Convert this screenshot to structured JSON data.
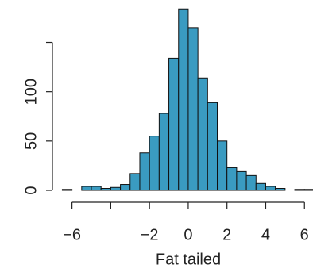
{
  "chart_data": {
    "type": "histogram",
    "x_label": "Fat tailed",
    "bins": [
      -6.5,
      -6,
      -5.5,
      -5,
      -4.5,
      -4,
      -3.5,
      -3,
      -2.5,
      -2,
      -1.5,
      -1,
      -0.5,
      0,
      0.5,
      1,
      1.5,
      2,
      2.5,
      3,
      3.5,
      4,
      4.5,
      5,
      5.5,
      6,
      6.5
    ],
    "values": [
      1,
      0,
      4,
      4,
      2,
      3,
      6,
      17,
      38,
      55,
      78,
      134,
      184,
      165,
      114,
      89,
      50,
      23,
      19,
      15,
      7,
      4,
      2,
      0,
      1,
      1
    ],
    "color": "#3a9bc1",
    "xlim": [
      -6.6,
      6.4
    ],
    "xticks": [
      -6,
      {
        "value": -4,
        "label": null
      },
      -2,
      0,
      2,
      4,
      6
    ],
    "ylim": [
      0,
      185
    ],
    "yticks": [
      0,
      50,
      100,
      {
        "value": 150,
        "label": null
      }
    ]
  }
}
